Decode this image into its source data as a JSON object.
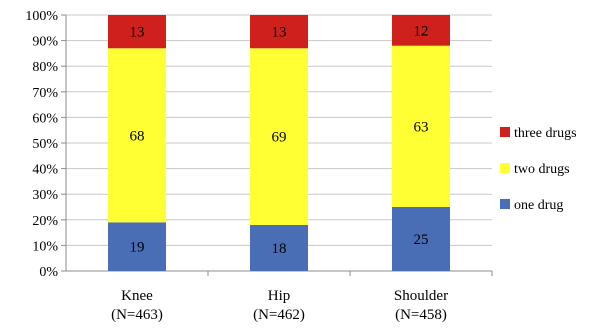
{
  "chart_data": {
    "type": "bar",
    "stacked": true,
    "categories": [
      "Knee",
      "Hip",
      "Shoulder"
    ],
    "category_sublabels": [
      "(N=463)",
      "(N=462)",
      "(N=458)"
    ],
    "series": [
      {
        "name": "one drug",
        "values": [
          19,
          18,
          25
        ],
        "color": "#4a6eb5"
      },
      {
        "name": "two drugs",
        "values": [
          68,
          69,
          63
        ],
        "color": "#ffff33"
      },
      {
        "name": "three drugs",
        "values": [
          13,
          13,
          12
        ],
        "color": "#d0201c"
      }
    ],
    "ylim": [
      0,
      100
    ],
    "yticks": [
      "0%",
      "10%",
      "20%",
      "30%",
      "40%",
      "50%",
      "60%",
      "70%",
      "80%",
      "90%",
      "100%"
    ],
    "grid": true,
    "legend": "right"
  }
}
